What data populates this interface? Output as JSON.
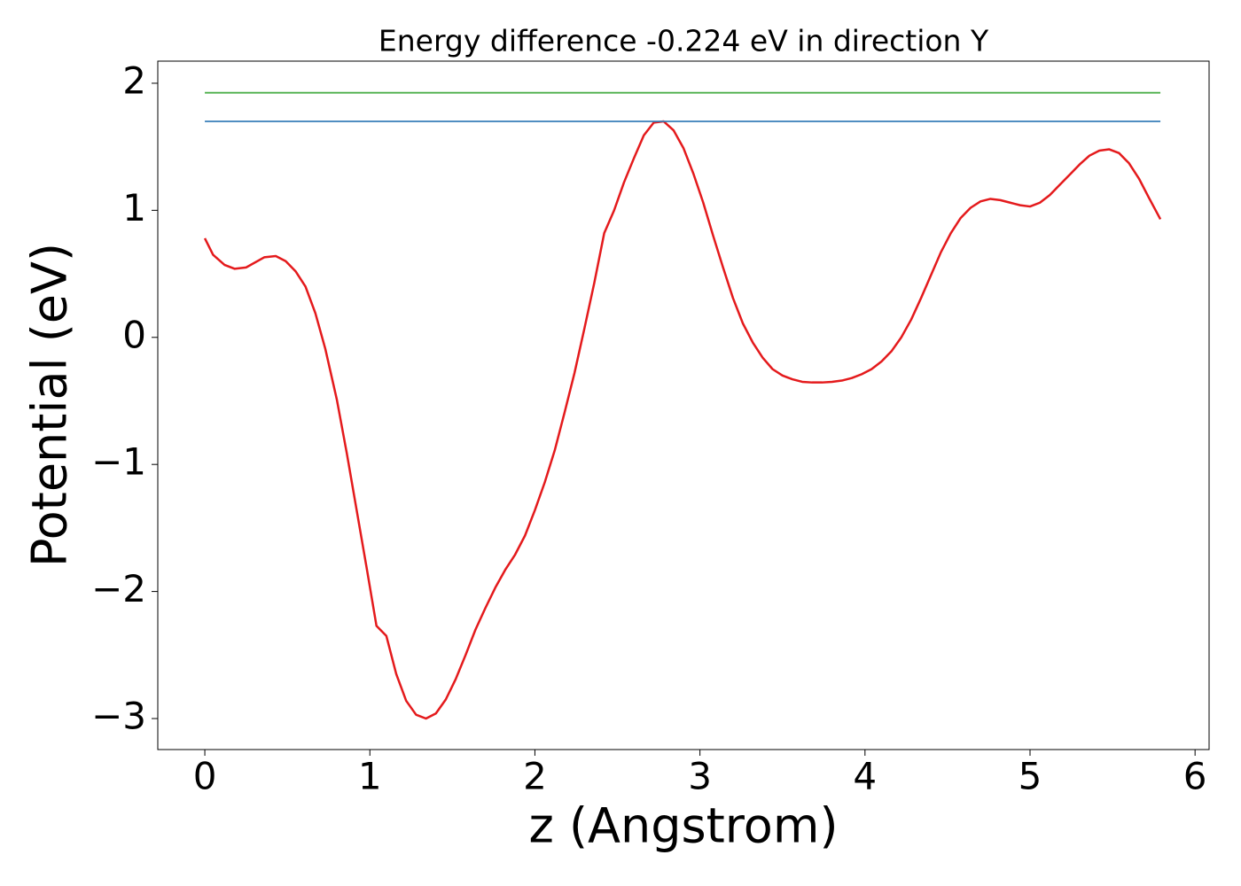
{
  "chart_data": {
    "type": "line",
    "title": "Energy difference -0.224 eV in direction Y",
    "x_label": "z (Angstrom)",
    "y_label": "Potential (eV)",
    "xlim": [
      -0.285,
      6.085
    ],
    "ylim": [
      -3.244,
      2.174
    ],
    "xticks": [
      0,
      1,
      2,
      3,
      4,
      5,
      6
    ],
    "yticks": [
      {
        "value": -3,
        "label": "−3"
      },
      {
        "value": -2,
        "label": "−2"
      },
      {
        "value": -1,
        "label": "−1"
      },
      0,
      1,
      2
    ],
    "grid": false,
    "series": [
      {
        "color": "#e41a1c",
        "x": [
          0,
          0.05,
          0.12,
          0.18,
          0.25,
          0.36,
          0.43,
          0.49,
          0.55,
          0.61,
          0.67,
          0.73,
          0.8,
          0.86,
          0.92,
          0.98,
          1.04,
          1.1,
          1.16,
          1.22,
          1.28,
          1.34,
          1.4,
          1.46,
          1.52,
          1.58,
          1.64,
          1.7,
          1.76,
          1.82,
          1.88,
          1.94,
          2.0,
          2.06,
          2.12,
          2.18,
          2.24,
          2.3,
          2.36,
          2.42,
          2.48,
          2.54,
          2.6,
          2.66,
          2.72,
          2.78,
          2.84,
          2.9,
          2.96,
          3.02,
          3.08,
          3.14,
          3.2,
          3.26,
          3.32,
          3.38,
          3.44,
          3.5,
          3.56,
          3.62,
          3.68,
          3.74,
          3.8,
          3.86,
          3.92,
          3.98,
          4.04,
          4.1,
          4.16,
          4.22,
          4.28,
          4.34,
          4.4,
          4.46,
          4.52,
          4.58,
          4.64,
          4.7,
          4.76,
          4.82,
          4.88,
          4.94,
          5.0,
          5.06,
          5.12,
          5.18,
          5.24,
          5.3,
          5.36,
          5.42,
          5.48,
          5.54,
          5.6,
          5.66,
          5.72,
          5.79
        ],
        "values": [
          0.78,
          0.65,
          0.57,
          0.54,
          0.55,
          0.63,
          0.64,
          0.6,
          0.52,
          0.4,
          0.19,
          -0.09,
          -0.49,
          -0.91,
          -1.36,
          -1.81,
          -2.27,
          -2.35,
          -2.65,
          -2.86,
          -2.97,
          -3.0,
          -2.96,
          -2.85,
          -2.69,
          -2.5,
          -2.3,
          -2.13,
          -1.97,
          -1.83,
          -1.71,
          -1.56,
          -1.36,
          -1.14,
          -0.89,
          -0.59,
          -0.28,
          0.07,
          0.43,
          0.82,
          1.0,
          1.22,
          1.41,
          1.59,
          1.69,
          1.7,
          1.63,
          1.49,
          1.29,
          1.06,
          0.8,
          0.55,
          0.31,
          0.11,
          -0.04,
          -0.16,
          -0.25,
          -0.3,
          -0.33,
          -0.35,
          -0.355,
          -0.355,
          -0.35,
          -0.34,
          -0.32,
          -0.29,
          -0.25,
          -0.19,
          -0.11,
          0.0,
          0.14,
          0.31,
          0.49,
          0.67,
          0.82,
          0.94,
          1.02,
          1.07,
          1.09,
          1.08,
          1.06,
          1.04,
          1.03,
          1.06,
          1.12,
          1.2,
          1.28,
          1.36,
          1.43,
          1.47,
          1.48,
          1.45,
          1.37,
          1.25,
          1.1,
          0.93
        ]
      },
      {
        "color": "#4daf4a",
        "x": [
          0,
          5.79
        ],
        "values": [
          1.925,
          1.925
        ]
      },
      {
        "color": "#377eb8",
        "x": [
          0,
          5.79
        ],
        "values": [
          1.7,
          1.7
        ]
      }
    ]
  }
}
